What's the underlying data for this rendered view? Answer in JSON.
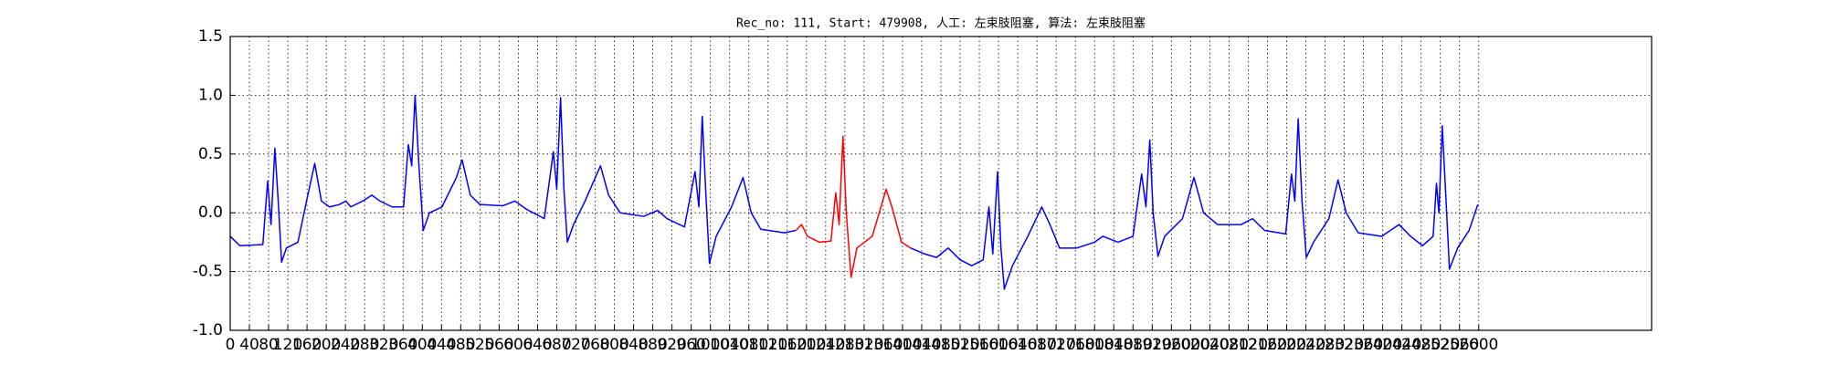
{
  "chart_data": {
    "type": "line",
    "title": "Rec_no: 111, Start: 479908, 人工: 左束肢阻塞, 算法: 左束肢阻塞",
    "xlim": [
      0,
      2960
    ],
    "ylim": [
      -1,
      1.5
    ],
    "xticks": [
      0,
      40,
      80,
      120,
      160,
      200,
      240,
      280,
      320,
      360,
      400,
      440,
      480,
      520,
      560,
      600,
      640,
      680,
      720,
      760,
      800,
      840,
      880,
      920,
      960,
      1000,
      1040,
      1080,
      1120,
      1160,
      1200,
      1240,
      1280,
      1320,
      1360,
      1400,
      1440,
      1480,
      1520,
      1560,
      1600,
      1640,
      1680,
      1720,
      1760,
      1800,
      1840,
      1880,
      1920,
      1960,
      2000,
      2040,
      2080,
      2120,
      2160,
      2200,
      2240,
      2280,
      2320,
      2360,
      2400,
      2440,
      2480,
      2520,
      2560,
      2600
    ],
    "yticks": [
      {
        "value": -1,
        "label": "-1.0"
      },
      -0.5,
      {
        "value": 0,
        "label": "0.0"
      },
      0.5,
      {
        "value": 1,
        "label": "1.0"
      },
      1.5
    ],
    "grid": true,
    "series": [
      {
        "color": "#0000ff",
        "x": [
          0,
          20,
          68,
          78,
          85,
          93,
          100,
          107,
          117,
          141,
          159,
          176,
          190,
          207,
          227,
          241,
          251,
          276,
          295,
          312,
          337,
          361,
          371,
          378,
          385,
          393,
          402,
          415,
          441,
          471,
          483,
          500,
          520,
          568,
          593,
          617,
          654,
          673,
          680,
          688,
          695,
          702,
          715,
          739,
          771,
          788,
          812,
          861,
          890,
          910,
          946,
          968,
          976,
          983,
          990,
          998,
          1012,
          1044,
          1068,
          1085,
          1105,
          1154,
          1178,
          1300,
          1417,
          1446,
          1471,
          1495,
          1520,
          1544,
          1568,
          1580,
          1588,
          1598,
          1605,
          1612,
          1629,
          1661,
          1690,
          1707,
          1727,
          1763,
          1800,
          1817,
          1849,
          1880,
          1898,
          1907,
          1915,
          1922,
          1932,
          1946,
          1983,
          2007,
          2027,
          2056,
          2105,
          2129,
          2154,
          2198,
          2210,
          2217,
          2224,
          2232,
          2241,
          2256,
          2288,
          2307,
          2324,
          2349,
          2398,
          2434,
          2458,
          2483,
          2505,
          2512,
          2517,
          2524,
          2532,
          2539,
          2556,
          2580,
          2598
        ],
        "values": [
          -0.2,
          -0.28,
          -0.27,
          0.27,
          -0.1,
          0.55,
          0.1,
          -0.42,
          -0.3,
          -0.25,
          0.1,
          0.42,
          0.1,
          0.05,
          0.07,
          0.1,
          0.05,
          0.1,
          0.15,
          0.1,
          0.05,
          0.05,
          0.58,
          0.4,
          1.0,
          0.4,
          -0.15,
          0,
          0.05,
          0.3,
          0.45,
          0.15,
          0.07,
          0.06,
          0.1,
          0.03,
          -0.05,
          0.52,
          0.2,
          0.98,
          0.2,
          -0.25,
          -0.1,
          0.1,
          0.4,
          0.15,
          0,
          -0.03,
          0.02,
          -0.05,
          -0.12,
          0.35,
          0.05,
          0.82,
          0.2,
          -0.43,
          -0.2,
          0.05,
          0.3,
          0,
          -0.14,
          -0.17,
          -0.15,
          null,
          -0.3,
          -0.35,
          -0.38,
          -0.3,
          -0.4,
          -0.45,
          -0.4,
          0.05,
          -0.35,
          0.35,
          -0.3,
          -0.65,
          -0.45,
          -0.2,
          0.05,
          -0.1,
          -0.3,
          -0.3,
          -0.25,
          -0.2,
          -0.25,
          -0.2,
          0.33,
          0.05,
          0.62,
          0,
          -0.37,
          -0.2,
          -0.05,
          0.3,
          0,
          -0.1,
          -0.1,
          -0.05,
          -0.15,
          -0.18,
          0.33,
          0.1,
          0.8,
          0.1,
          -0.38,
          -0.25,
          -0.05,
          0.28,
          0,
          -0.17,
          -0.2,
          -0.1,
          -0.2,
          -0.28,
          -0.2,
          0.25,
          0,
          0.74,
          0.1,
          -0.48,
          -0.3,
          -0.15,
          0.07
        ]
      },
      {
        "color": "#ff0000",
        "x": [
          1178,
          1190,
          1202,
          1227,
          1251,
          1261,
          1268,
          1276,
          1283,
          1293,
          1305,
          1337,
          1366,
          1378,
          1398,
          1417
        ],
        "values": [
          -0.15,
          -0.1,
          -0.2,
          -0.25,
          -0.24,
          0.17,
          -0.1,
          0.65,
          0,
          -0.55,
          -0.3,
          -0.2,
          0.2,
          0.05,
          -0.25,
          -0.3
        ]
      }
    ]
  }
}
